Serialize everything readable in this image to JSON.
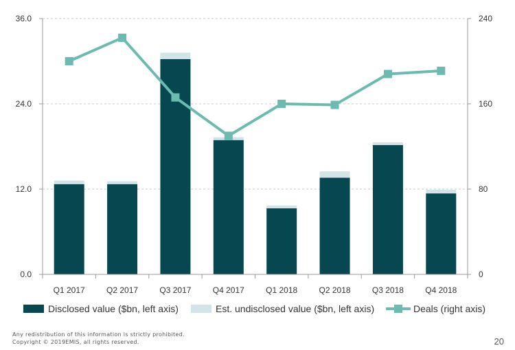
{
  "chart_data": {
    "type": "bar",
    "stacked": true,
    "categories": [
      "Q1 2017",
      "Q2 2017",
      "Q3 2017",
      "Q4 2017",
      "Q1 2018",
      "Q2 2018",
      "Q3 2018",
      "Q4 2018"
    ],
    "series": [
      {
        "name": "Disclosed value ($bn, left axis)",
        "kind": "bar",
        "axis": "left",
        "values": [
          12.7,
          12.7,
          30.3,
          18.9,
          9.3,
          13.6,
          18.2,
          11.4
        ],
        "color": "#07474f"
      },
      {
        "name": "Est. undisclosed value ($bn, left axis)",
        "kind": "bar",
        "axis": "left",
        "values": [
          0.5,
          0.4,
          0.9,
          0.4,
          0.4,
          0.9,
          0.4,
          0.5
        ],
        "color": "#d3e4e9"
      },
      {
        "name": "Deals (right axis)",
        "kind": "line",
        "axis": "right",
        "values": [
          200,
          222,
          166,
          130,
          160,
          159,
          188,
          191
        ],
        "color": "#6dbab0"
      }
    ],
    "y_left": {
      "min": 0,
      "max": 36,
      "ticks": [
        "0.0",
        "12.0",
        "24.0",
        "36.0"
      ]
    },
    "y_right": {
      "min": 0,
      "max": 240,
      "ticks": [
        "0",
        "80",
        "160",
        "240"
      ]
    },
    "grid": true,
    "legend_position": "bottom"
  },
  "footer": {
    "line1": "Any redistribution of this information is strictly prohibited.",
    "line2": "Copyright © 2019EMIS, all rights reserved."
  },
  "page_number": "20"
}
